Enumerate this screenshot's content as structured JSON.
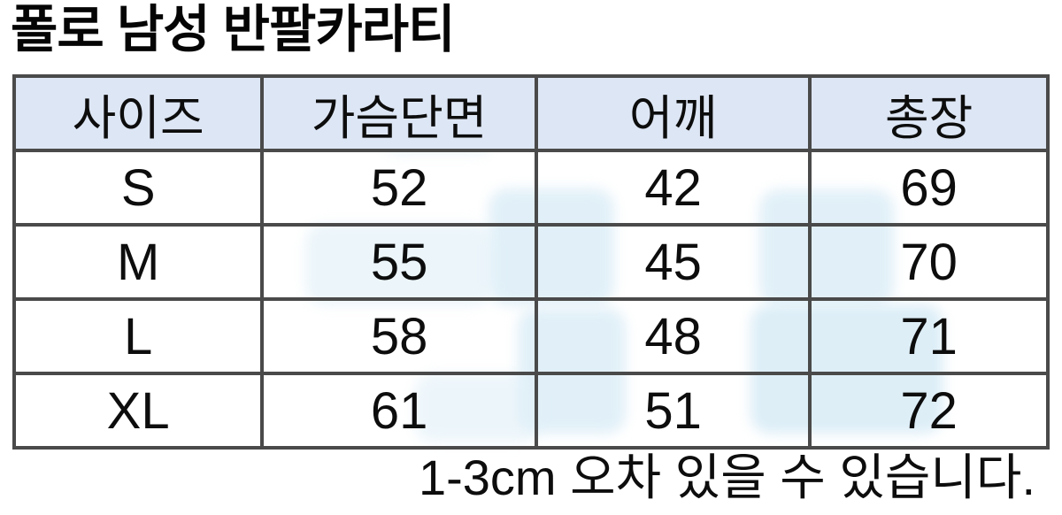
{
  "chart_data": {
    "type": "table",
    "title": "폴로 남성 반팔카라티",
    "columns": [
      "사이즈",
      "가슴단면",
      "어깨",
      "총장"
    ],
    "rows": [
      [
        "S",
        "52",
        "42",
        "69"
      ],
      [
        "M",
        "55",
        "45",
        "70"
      ],
      [
        "L",
        "58",
        "48",
        "71"
      ],
      [
        "XL",
        "61",
        "51",
        "72"
      ]
    ],
    "footnote": "1-3cm 오차 있을 수 있습니다.",
    "layout_hints": {
      "header_fill": true,
      "grid": "all-borders",
      "title_position": "top-left",
      "footnote_position": "bottom-right"
    }
  },
  "colors": {
    "page_bg": "#ffffff",
    "header_bg": "#dde6f4",
    "border": "#4a4a4a",
    "text": "#0d0d0d",
    "title": "#050505",
    "watermark": "#e1f0f8"
  }
}
